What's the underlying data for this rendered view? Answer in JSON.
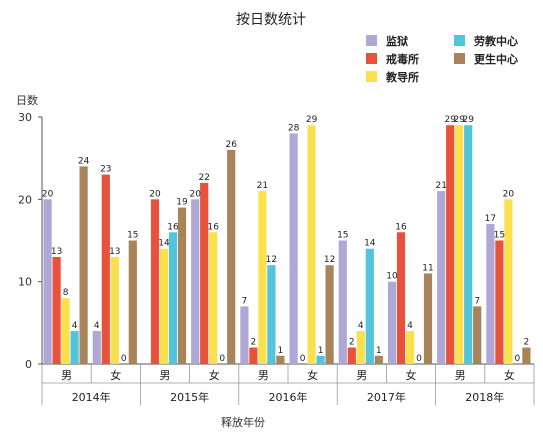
{
  "chart_data": {
    "type": "bar",
    "title": "按日数统计",
    "ylabel": "日数",
    "xlabel": "释放年份",
    "ylim": [
      0,
      30
    ],
    "yticks": [
      0,
      10,
      20,
      30
    ],
    "groups": [
      "2014年",
      "2015年",
      "2016年",
      "2017年",
      "2018年"
    ],
    "subcategories": [
      "男",
      "女"
    ],
    "series": [
      {
        "name": "监狱",
        "color": "#afa8d6",
        "values": [
          20,
          4,
          null,
          20,
          7,
          28,
          15,
          10,
          21,
          17
        ]
      },
      {
        "name": "戒毒所",
        "color": "#e8513a",
        "values": [
          13,
          23,
          20,
          22,
          2,
          0,
          2,
          16,
          29,
          15
        ]
      },
      {
        "name": "教导所",
        "color": "#fbe04e",
        "values": [
          8,
          13,
          14,
          16,
          21,
          29,
          4,
          4,
          29,
          20
        ]
      },
      {
        "name": "劳教中心",
        "color": "#52c5dc",
        "values": [
          4,
          0,
          16,
          0,
          12,
          1,
          14,
          0,
          29,
          0
        ]
      },
      {
        "name": "更生中心",
        "color": "#a8845a",
        "values": [
          24,
          15,
          19,
          26,
          1,
          12,
          1,
          11,
          7,
          2
        ]
      }
    ],
    "legend_position": "top-right",
    "grid": false
  }
}
